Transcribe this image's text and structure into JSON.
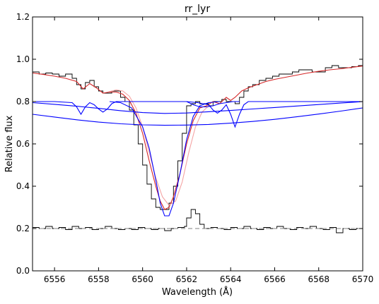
{
  "chart_data": {
    "type": "line",
    "title": "rr_lyr",
    "xlabel": "Wavelength (Å)",
    "ylabel": "Relative flux",
    "xlim": [
      6555,
      6570
    ],
    "ylim": [
      0.0,
      1.2
    ],
    "xticks": [
      6556,
      6558,
      6560,
      6562,
      6564,
      6566,
      6568,
      6570
    ],
    "yticks": [
      0.0,
      0.2,
      0.4,
      0.6,
      0.8,
      1.0,
      1.2
    ],
    "grid": false,
    "legend": "none",
    "colors": {
      "observed": "#000000",
      "model": "#d62728",
      "model_alt": "#f4a3a3",
      "components": "#0000ff",
      "residual_baseline": "#808080"
    },
    "series": [
      {
        "style": "step",
        "color": "#000000",
        "x": [
          6555.0,
          6555.3,
          6555.6,
          6555.9,
          6556.2,
          6556.5,
          6556.8,
          6557.0,
          6557.2,
          6557.4,
          6557.6,
          6557.8,
          6558.0,
          6558.2,
          6558.4,
          6558.6,
          6558.8,
          6559.0,
          6559.2,
          6559.4,
          6559.6,
          6559.8,
          6560.0,
          6560.2,
          6560.4,
          6560.6,
          6560.8,
          6561.0,
          6561.2,
          6561.4,
          6561.6,
          6561.8,
          6562.0,
          6562.2,
          6562.4,
          6562.6,
          6562.8,
          6563.0,
          6563.2,
          6563.4,
          6563.6,
          6563.8,
          6564.0,
          6564.2,
          6564.4,
          6564.6,
          6564.8,
          6565.0,
          6565.3,
          6565.6,
          6565.9,
          6566.2,
          6566.5,
          6566.8,
          6567.1,
          6567.4,
          6567.7,
          6568.0,
          6568.3,
          6568.6,
          6568.9,
          6569.2,
          6569.5,
          6569.8,
          6570.0
        ],
        "y": [
          0.94,
          0.93,
          0.935,
          0.93,
          0.92,
          0.93,
          0.91,
          0.88,
          0.86,
          0.89,
          0.9,
          0.87,
          0.85,
          0.84,
          0.84,
          0.85,
          0.85,
          0.82,
          0.8,
          0.76,
          0.69,
          0.6,
          0.5,
          0.41,
          0.34,
          0.3,
          0.29,
          0.29,
          0.32,
          0.4,
          0.52,
          0.65,
          0.78,
          0.79,
          0.8,
          0.79,
          0.79,
          0.78,
          0.8,
          0.8,
          0.81,
          0.8,
          0.8,
          0.79,
          0.82,
          0.85,
          0.87,
          0.88,
          0.9,
          0.91,
          0.92,
          0.93,
          0.93,
          0.94,
          0.95,
          0.95,
          0.94,
          0.94,
          0.96,
          0.97,
          0.96,
          0.96,
          0.965,
          0.97,
          0.97
        ]
      },
      {
        "style": "line",
        "color": "#d62728",
        "x": [
          6555.0,
          6555.5,
          6556.0,
          6556.5,
          6557.0,
          6557.3,
          6557.6,
          6557.9,
          6558.2,
          6558.5,
          6558.8,
          6559.1,
          6559.4,
          6559.7,
          6560.0,
          6560.3,
          6560.6,
          6560.8,
          6561.0,
          6561.2,
          6561.4,
          6561.7,
          6562.0,
          6562.3,
          6562.6,
          6562.9,
          6563.2,
          6563.5,
          6563.8,
          6564.0,
          6564.2,
          6564.5,
          6564.8,
          6565.2,
          6565.6,
          6566.0,
          6566.5,
          6567.0,
          6567.5,
          6568.0,
          6568.5,
          6569.0,
          6569.5,
          6570.0
        ],
        "y": [
          0.935,
          0.928,
          0.92,
          0.91,
          0.895,
          0.86,
          0.885,
          0.865,
          0.84,
          0.845,
          0.845,
          0.835,
          0.805,
          0.745,
          0.65,
          0.52,
          0.4,
          0.33,
          0.29,
          0.3,
          0.35,
          0.46,
          0.6,
          0.71,
          0.77,
          0.78,
          0.8,
          0.79,
          0.82,
          0.805,
          0.82,
          0.85,
          0.865,
          0.88,
          0.895,
          0.905,
          0.915,
          0.925,
          0.935,
          0.943,
          0.95,
          0.955,
          0.962,
          0.968
        ]
      },
      {
        "style": "line",
        "color": "#f4a3a3",
        "x": [
          6558.4,
          6558.8,
          6559.1,
          6559.4,
          6559.7,
          6560.0,
          6560.3,
          6560.6,
          6560.9,
          6561.2,
          6561.5,
          6561.8,
          6562.1,
          6562.4,
          6562.7,
          6563.0
        ],
        "y": [
          0.845,
          0.855,
          0.85,
          0.825,
          0.77,
          0.68,
          0.56,
          0.44,
          0.35,
          0.31,
          0.33,
          0.42,
          0.56,
          0.68,
          0.75,
          0.78
        ]
      },
      {
        "style": "line",
        "color": "#0000ff",
        "x": [
          6555,
          6556,
          6556.8,
          6557.0,
          6557.2,
          6557.4,
          6557.6,
          6557.8,
          6558.0,
          6558.2,
          6558.4,
          6558.6,
          6558.8,
          6559.2,
          6562.0,
          6562.5,
          6563.0,
          6563.2,
          6563.4,
          6563.6,
          6563.8,
          6564.0,
          6564.2,
          6564.4,
          6564.6,
          6564.8,
          6565.2,
          6570
        ],
        "y": [
          0.8,
          0.8,
          0.795,
          0.775,
          0.74,
          0.775,
          0.795,
          0.785,
          0.765,
          0.75,
          0.765,
          0.79,
          0.8,
          0.8,
          0.8,
          0.795,
          0.785,
          0.76,
          0.745,
          0.76,
          0.785,
          0.74,
          0.68,
          0.74,
          0.785,
          0.8,
          0.8,
          0.8
        ]
      },
      {
        "style": "line",
        "color": "#0000ff",
        "x": [
          6555,
          6556,
          6557,
          6558,
          6559,
          6560,
          6561,
          6562,
          6563,
          6564,
          6565,
          6566,
          6567,
          6568,
          6569,
          6570
        ],
        "y": [
          0.795,
          0.787,
          0.778,
          0.768,
          0.757,
          0.748,
          0.744,
          0.746,
          0.752,
          0.758,
          0.765,
          0.772,
          0.779,
          0.786,
          0.793,
          0.8
        ]
      },
      {
        "style": "line",
        "color": "#0000ff",
        "x": [
          6555,
          6556,
          6557,
          6558,
          6559,
          6560,
          6561,
          6562,
          6563,
          6564,
          6565,
          6566,
          6567,
          6568,
          6569,
          6570
        ],
        "y": [
          0.74,
          0.727,
          0.714,
          0.703,
          0.695,
          0.69,
          0.688,
          0.689,
          0.692,
          0.698,
          0.706,
          0.716,
          0.728,
          0.741,
          0.755,
          0.77
        ]
      },
      {
        "style": "line",
        "color": "#0000ff",
        "x": [
          6558.5,
          6559.0,
          6559.5,
          6560.0,
          6560.3,
          6560.6,
          6560.8,
          6561.0,
          6561.2,
          6561.4,
          6561.7,
          6562.0,
          6562.3,
          6562.6,
          6563.0,
          6563.5
        ],
        "y": [
          0.8,
          0.795,
          0.77,
          0.68,
          0.58,
          0.43,
          0.32,
          0.26,
          0.26,
          0.32,
          0.46,
          0.62,
          0.73,
          0.78,
          0.795,
          0.8
        ]
      },
      {
        "style": "line",
        "color": "#0000ff",
        "x": [
          6562.0,
          6562.3,
          6562.6,
          6562.9,
          6563.2,
          6563.5,
          6563.8,
          6564.1,
          6564.4
        ],
        "y": [
          0.8,
          0.785,
          0.775,
          0.775,
          0.78,
          0.79,
          0.795,
          0.8,
          0.8
        ]
      },
      {
        "style": "step",
        "color": "#000000",
        "x": [
          6555.0,
          6555.3,
          6555.6,
          6555.9,
          6556.2,
          6556.5,
          6556.8,
          6557.1,
          6557.4,
          6557.7,
          6558.0,
          6558.3,
          6558.6,
          6558.9,
          6559.2,
          6559.5,
          6559.8,
          6560.1,
          6560.4,
          6560.7,
          6561.0,
          6561.3,
          6561.6,
          6561.9,
          6562.0,
          6562.2,
          6562.4,
          6562.6,
          6562.8,
          6563.1,
          6563.4,
          6563.7,
          6564.0,
          6564.3,
          6564.6,
          6564.9,
          6565.2,
          6565.5,
          6565.8,
          6566.1,
          6566.4,
          6566.7,
          6567.0,
          6567.3,
          6567.6,
          6567.9,
          6568.2,
          6568.5,
          6568.8,
          6569.1,
          6569.4,
          6569.7,
          6570.0
        ],
        "y": [
          0.205,
          0.2,
          0.21,
          0.2,
          0.205,
          0.195,
          0.21,
          0.2,
          0.205,
          0.195,
          0.2,
          0.21,
          0.2,
          0.195,
          0.2,
          0.195,
          0.205,
          0.2,
          0.195,
          0.2,
          0.19,
          0.2,
          0.205,
          0.21,
          0.25,
          0.29,
          0.27,
          0.22,
          0.2,
          0.205,
          0.2,
          0.195,
          0.205,
          0.2,
          0.21,
          0.2,
          0.195,
          0.205,
          0.2,
          0.21,
          0.2,
          0.195,
          0.205,
          0.2,
          0.21,
          0.2,
          0.195,
          0.205,
          0.18,
          0.2,
          0.195,
          0.2,
          0.2
        ]
      },
      {
        "style": "dashed",
        "color": "#808080",
        "x": [
          6555,
          6570
        ],
        "y": [
          0.2,
          0.2
        ]
      }
    ]
  }
}
